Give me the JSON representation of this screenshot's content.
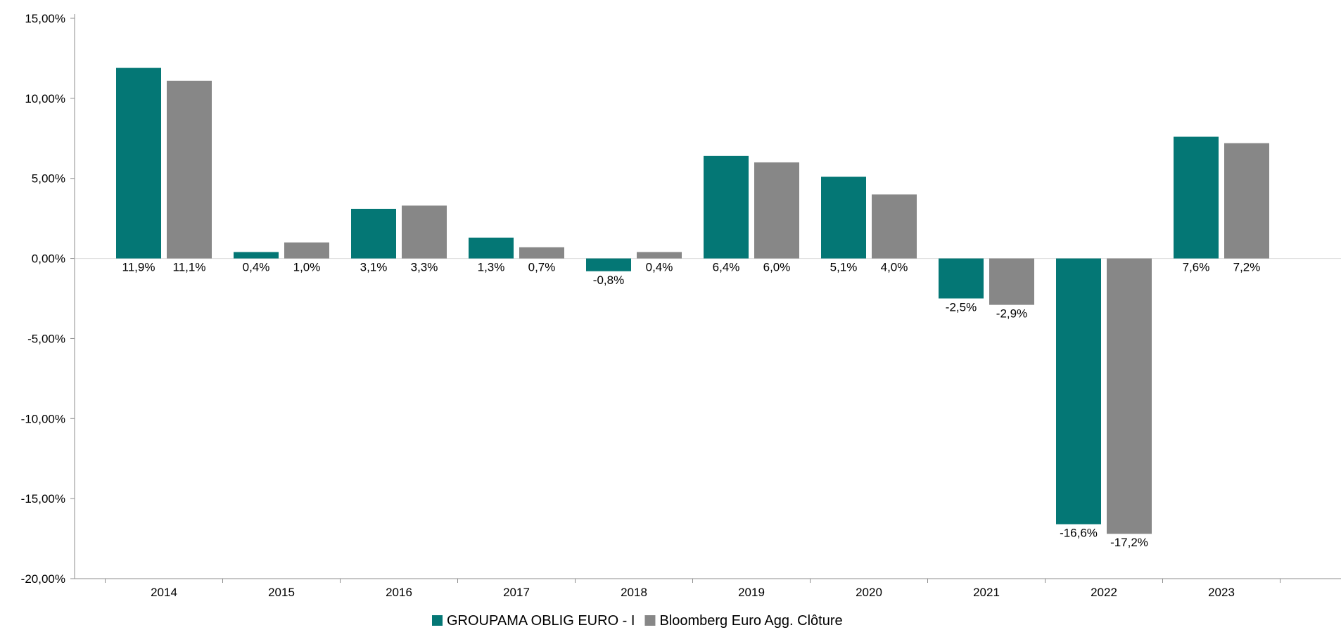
{
  "chart_data": {
    "type": "bar",
    "title": "",
    "xlabel": "",
    "ylabel": "",
    "categories": [
      "2014",
      "2015",
      "2016",
      "2017",
      "2018",
      "2019",
      "2020",
      "2021",
      "2022",
      "2023"
    ],
    "series": [
      {
        "name": "GROUPAMA OBLIG EURO - I",
        "color": "#047775",
        "values": [
          11.9,
          0.4,
          3.1,
          1.3,
          -0.8,
          6.4,
          5.1,
          -2.5,
          -16.6,
          7.6
        ],
        "labels": [
          "11,9%",
          "0,4%",
          "3,1%",
          "1,3%",
          "-0,8%",
          "6,4%",
          "5,1%",
          "-2,5%",
          "-16,6%",
          "7,6%"
        ]
      },
      {
        "name": "Bloomberg Euro Agg. Clôture",
        "color": "#878787",
        "values": [
          11.1,
          1.0,
          3.3,
          0.7,
          0.4,
          6.0,
          4.0,
          -2.9,
          -17.2,
          7.2
        ],
        "labels": [
          "11,1%",
          "1,0%",
          "3,3%",
          "0,7%",
          "0,4%",
          "6,0%",
          "4,0%",
          "-2,9%",
          "-17,2%",
          "7,2%"
        ]
      }
    ],
    "ylim": [
      -20,
      15
    ],
    "yticks": [
      15,
      10,
      5,
      0,
      -5,
      -10,
      -15,
      -20
    ],
    "ytick_labels": [
      "15,00%",
      "10,00%",
      "5,00%",
      "0,00%",
      "-5,00%",
      "-10,00%",
      "-15,00%",
      "-20,00%"
    ],
    "grid": false,
    "zero_line": true,
    "legend_position": "bottom-center"
  }
}
